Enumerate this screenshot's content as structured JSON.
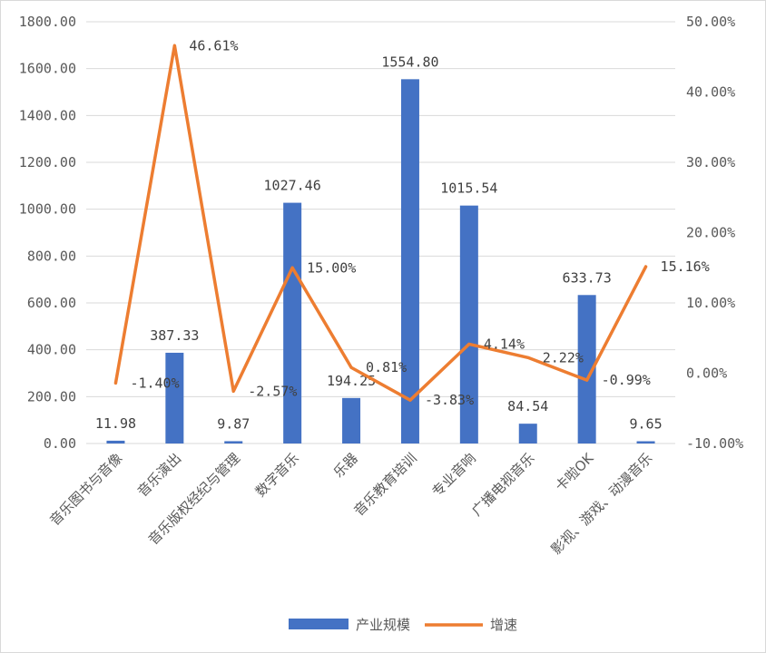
{
  "chart_data": {
    "type": "bar+line",
    "categories": [
      "音乐图书与音像",
      "音乐演出",
      "音乐版权经纪与管理",
      "数字音乐",
      "乐器",
      "音乐教育培训",
      "专业音响",
      "广播电视音乐",
      "卡啦OK",
      "影视、游戏、动漫音乐"
    ],
    "series": [
      {
        "name": "产业规模",
        "type": "bar",
        "axis": "left",
        "color": "#4472c4",
        "values": [
          11.98,
          387.33,
          9.87,
          1027.46,
          194.25,
          1554.8,
          1015.54,
          84.54,
          633.73,
          9.65
        ],
        "labels": [
          "11.98",
          "387.33",
          "9.87",
          "1027.46",
          "194.25",
          "1554.80",
          "1015.54",
          "84.54",
          "633.73",
          "9.65"
        ]
      },
      {
        "name": "增速",
        "type": "line",
        "axis": "right",
        "color": "#ed7d31",
        "values": [
          -1.4,
          46.61,
          -2.57,
          15.0,
          0.81,
          -3.83,
          4.14,
          2.22,
          -0.99,
          15.16
        ],
        "labels": [
          "-1.40%",
          "46.61%",
          "-2.57%",
          "15.00%",
          "0.81%",
          "-3.83%",
          "4.14%",
          "2.22%",
          "-0.99%",
          "15.16%"
        ]
      }
    ],
    "y_left": {
      "ylim": [
        0,
        1800
      ],
      "ticks": [
        0,
        200,
        400,
        600,
        800,
        1000,
        1200,
        1400,
        1600,
        1800
      ],
      "tick_labels": [
        "0.00",
        "200.00",
        "400.00",
        "600.00",
        "800.00",
        "1000.00",
        "1200.00",
        "1400.00",
        "1600.00",
        "1800.00"
      ]
    },
    "y_right": {
      "ylim": [
        -10,
        50
      ],
      "ticks": [
        -10,
        0,
        10,
        20,
        30,
        40,
        50
      ],
      "tick_labels": [
        "-10.00%",
        "0.00%",
        "10.00%",
        "20.00%",
        "30.00%",
        "40.00%",
        "50.00%"
      ]
    },
    "grid": true,
    "legend": {
      "position": "bottom",
      "entries": [
        "产业规模",
        "增速"
      ]
    }
  }
}
